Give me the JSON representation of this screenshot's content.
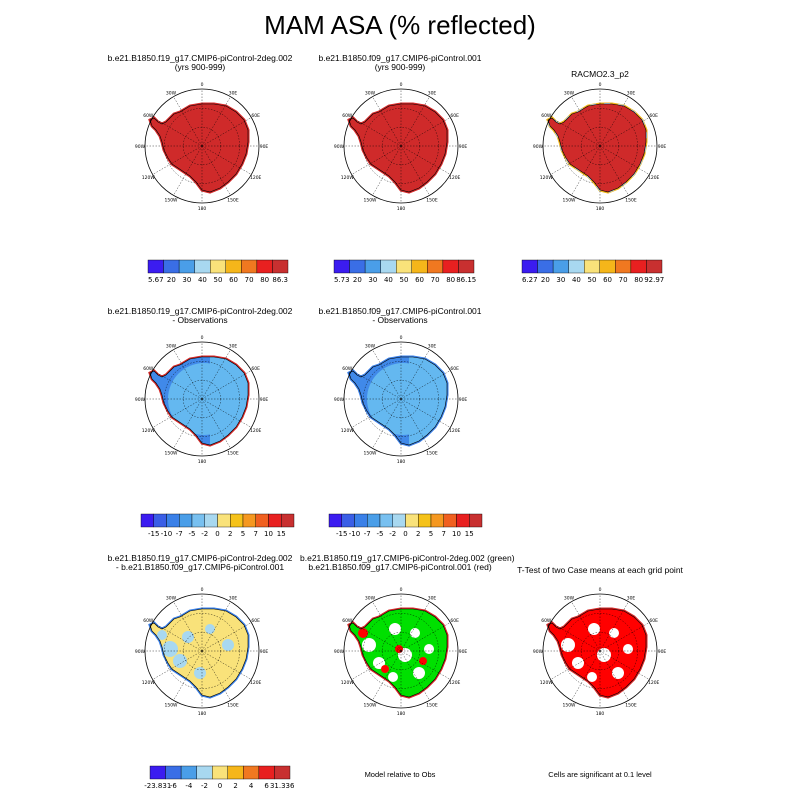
{
  "title": "MAM ASA (% reflected)",
  "panels": [
    {
      "id": "p1",
      "title1": "b.e21.B1850.f19_g17.CMIP6-piControl-2deg.002",
      "title2": "(yrs 900-999)",
      "fill": "#cf2a2a",
      "mask": "absolute",
      "edge": "red"
    },
    {
      "id": "p2",
      "title1": "b.e21.B1850.f09_g17.CMIP6-piControl.001",
      "title2": "(yrs 900-999)",
      "fill": "#cf2a2a",
      "mask": "absolute",
      "edge": "red"
    },
    {
      "id": "p3",
      "title1": "RACMO2.3_p2",
      "title2": "",
      "fill": "#cf2a2a",
      "mask": "obs",
      "edge": "mixed"
    },
    {
      "id": "p4",
      "title1": "b.e21.B1850.f19_g17.CMIP6-piControl-2deg.002",
      "title2": "- Observations",
      "fill": "#64b8f0",
      "mask": "diff",
      "edge": "red"
    },
    {
      "id": "p5",
      "title1": "b.e21.B1850.f09_g17.CMIP6-piControl.001",
      "title2": "- Observations",
      "fill": "#64b8f0",
      "mask": "diff2",
      "edge": "blue"
    },
    {
      "id": "p6",
      "title1": "b.e21.B1850.f19_g17.CMIP6-piControl-2deg.002",
      "title2": "- b.e21.B1850.f09_g17.CMIP6-piControl.001",
      "fill": "#f9e27a",
      "mask": "modeldiff",
      "edge": "blue"
    },
    {
      "id": "p7",
      "title1": "b.e21.B1850.f19_g17.CMIP6-piControl-2deg.002 (green)",
      "title2": "b.e21.B1850.f09_g17.CMIP6-piControl.001 (red)",
      "fill": "#00e000",
      "mask": "relobs",
      "edge": "red"
    },
    {
      "id": "p8",
      "title1": "T-Test of two Case means at each grid point",
      "title2": "",
      "fill": "#ff0000",
      "mask": "ttest",
      "edge": "red"
    }
  ],
  "polar_labels": {
    "top": "0",
    "bottom": "180",
    "left": "90W",
    "right": "90E",
    "tl1": "30W",
    "tl2": "60W",
    "tr1": "30E",
    "tr2": "60E",
    "bl1": "120W",
    "bl2": "150W",
    "br1": "120E",
    "br2": "150E"
  },
  "colorbars": {
    "abs1": {
      "labels": [
        "5.67",
        "20",
        "30",
        "40",
        "50",
        "60",
        "70",
        "80",
        "86.3"
      ]
    },
    "abs2": {
      "labels": [
        "5.73",
        "20",
        "30",
        "40",
        "50",
        "60",
        "70",
        "80",
        "86.15"
      ]
    },
    "abs3": {
      "labels": [
        "6.27",
        "20",
        "30",
        "40",
        "50",
        "60",
        "70",
        "80",
        "92.97"
      ]
    },
    "diff": {
      "labels": [
        "-15",
        "-10",
        "-7",
        "-5",
        "-2",
        "0",
        "2",
        "5",
        "7",
        "10",
        "15"
      ]
    },
    "mdiff": {
      "labels": [
        "-23.831",
        "-6",
        "-4",
        "-2",
        "0",
        "2",
        "4",
        "6",
        "31.336"
      ]
    }
  },
  "colors": {
    "abs": [
      "#3b1cf0",
      "#3a6ee6",
      "#4a9ee8",
      "#a8d8f0",
      "#f9e27a",
      "#f5b61a",
      "#f07820",
      "#e82020",
      "#c83030"
    ],
    "diff": [
      "#3b1cf0",
      "#3a5ee6",
      "#3a80e8",
      "#4a9ee8",
      "#78c0f0",
      "#a8d8f0",
      "#f9e27a",
      "#f5c21a",
      "#f59820",
      "#f06020",
      "#e82020",
      "#c83030"
    ],
    "mdiff": [
      "#3b1cf0",
      "#3a6ee6",
      "#4a9ee8",
      "#a8d8f0",
      "#f9e27a",
      "#f5b61a",
      "#f07820",
      "#e82020",
      "#c83030",
      "#a82828"
    ]
  },
  "footers": {
    "relobs": "Model relative to Obs",
    "ttest": "Cells are significant at 0.1 level"
  }
}
